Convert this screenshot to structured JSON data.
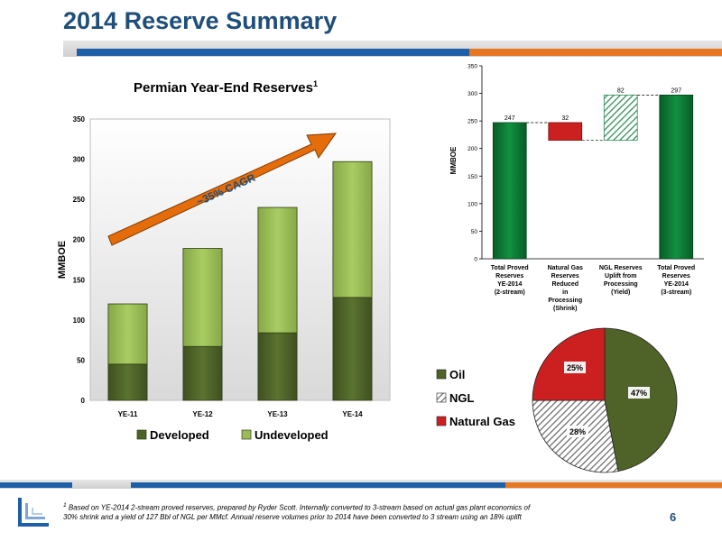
{
  "title": "2014 Reserve Summary",
  "page_number": "6",
  "footnote": {
    "sup": "1",
    "text": " Based on YE-2014 2-stream proved reserves, prepared by Ryder Scott. Internally converted to 3-stream based on actual gas plant economics of 30% shrink and a yield of 127 Bbl of NGL per MMcf. Annual reserve volumes prior to 2014 have been converted to 3 stream using an 18% uplift"
  },
  "colors": {
    "developed": "#4F6228",
    "undeveloped": "#9BBB59",
    "green_dark": "#0B7A36",
    "red": "#CC1F1F",
    "arrow": "#E46C0A",
    "navy": "#1F4E79"
  },
  "chart_data": [
    {
      "type": "bar",
      "title": "Permian Year-End Reserves",
      "title_sup": "1",
      "ylabel": "MMBOE",
      "xlabel": "",
      "ylim": [
        0,
        350
      ],
      "yticks": [
        "0",
        "50",
        "100",
        "150",
        "200",
        "250",
        "300",
        "350"
      ],
      "categories": [
        "YE-11",
        "YE-12",
        "YE-13",
        "YE-14"
      ],
      "series": [
        {
          "name": "Developed",
          "values": [
            45,
            67,
            84,
            128
          ]
        },
        {
          "name": "Undeveloped",
          "values": [
            75,
            122,
            156,
            169
          ]
        }
      ],
      "annotation": "~35% CAGR",
      "legend": "bottom"
    },
    {
      "type": "bar",
      "subtype": "waterfall",
      "ylabel": "MMBOE",
      "ylim": [
        0,
        350
      ],
      "yticks": [
        "0",
        "50",
        "100",
        "150",
        "200",
        "250",
        "300",
        "350"
      ],
      "categories": [
        [
          "Total Proved",
          "Reserves",
          "YE-2014",
          "(2-stream)"
        ],
        [
          "Natural Gas",
          "Reserves",
          "Reduced",
          "in",
          "Processing",
          "(Shrink)"
        ],
        [
          "NGL Reserves",
          "Uplift from",
          "Processing",
          "(Yield)"
        ],
        [
          "Total Proved",
          "Reserves",
          "YE-2014",
          "(3-stream)"
        ]
      ],
      "bars": [
        {
          "start": 0,
          "end": 247,
          "label": "247",
          "kind": "total"
        },
        {
          "start": 247,
          "end": 215,
          "label": "32",
          "kind": "decrease"
        },
        {
          "start": 215,
          "end": 297,
          "label": "82",
          "kind": "increase"
        },
        {
          "start": 0,
          "end": 297,
          "label": "297",
          "kind": "total"
        }
      ]
    },
    {
      "type": "pie",
      "slices": [
        {
          "name": "Oil",
          "value": 47,
          "label": "47%"
        },
        {
          "name": "NGL",
          "value": 28,
          "label": "28%"
        },
        {
          "name": "Natural Gas",
          "value": 25,
          "label": "25%"
        }
      ],
      "legend": "left"
    }
  ]
}
